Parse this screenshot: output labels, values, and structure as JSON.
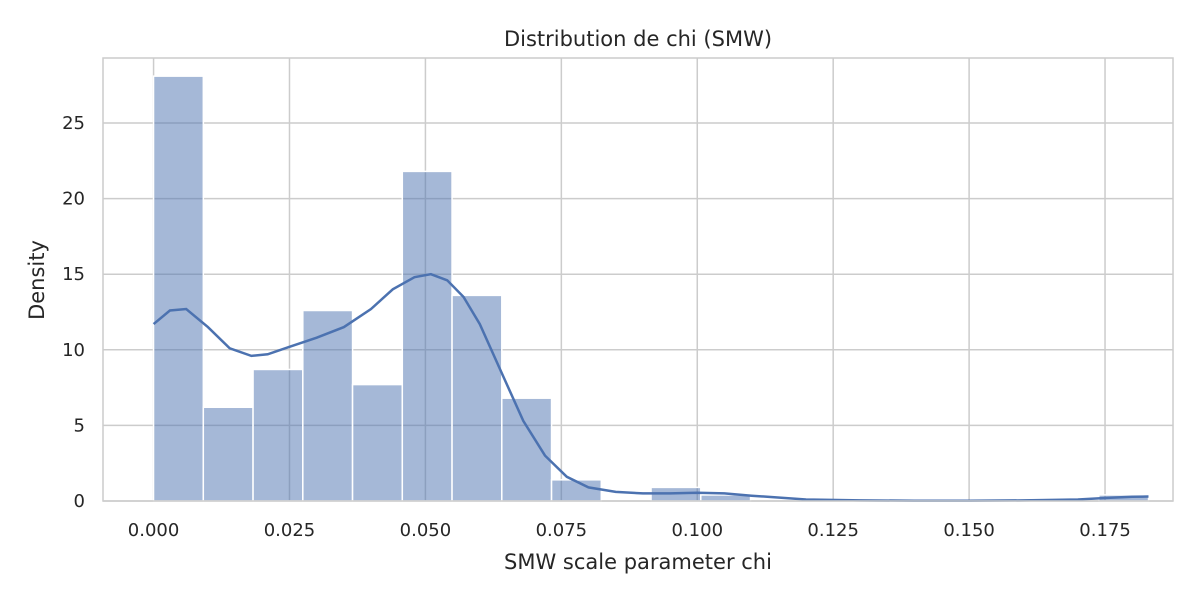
{
  "chart_data": {
    "type": "bar",
    "title": "Distribution de chi (SMW)",
    "xlabel": "SMW scale parameter chi",
    "ylabel": "Density",
    "xlim": [
      -0.0093,
      0.1875
    ],
    "ylim": [
      0,
      29.3
    ],
    "xticks": [
      0.0,
      0.025,
      0.05,
      0.075,
      0.1,
      0.125,
      0.15,
      0.175
    ],
    "xtick_labels": [
      "0.000",
      "0.025",
      "0.050",
      "0.075",
      "0.100",
      "0.125",
      "0.150",
      "0.175"
    ],
    "yticks": [
      0,
      5,
      10,
      15,
      20,
      25
    ],
    "ytick_labels": [
      "0",
      "5",
      "10",
      "15",
      "20",
      "25"
    ],
    "grid": true,
    "bin_edges": [
      0.0,
      0.00915,
      0.0183,
      0.02745,
      0.0366,
      0.04575,
      0.0549,
      0.06405,
      0.0732,
      0.08235,
      0.0915,
      0.10065,
      0.1098,
      0.11895,
      0.1281,
      0.13725,
      0.1464,
      0.15555,
      0.1647,
      0.17385,
      0.183
    ],
    "values": [
      28.1,
      6.2,
      8.7,
      12.6,
      7.7,
      21.8,
      13.6,
      6.8,
      1.4,
      0.0,
      0.9,
      0.4,
      0.0,
      0.0,
      0.0,
      0.0,
      0.0,
      0.0,
      0.0,
      0.4
    ],
    "kde": {
      "x": [
        0.0,
        0.003,
        0.006,
        0.01,
        0.014,
        0.018,
        0.021,
        0.025,
        0.03,
        0.035,
        0.04,
        0.044,
        0.048,
        0.051,
        0.054,
        0.057,
        0.06,
        0.064,
        0.068,
        0.072,
        0.076,
        0.08,
        0.085,
        0.09,
        0.095,
        0.1,
        0.105,
        0.11,
        0.12,
        0.13,
        0.14,
        0.15,
        0.16,
        0.17,
        0.175,
        0.18,
        0.183
      ],
      "y": [
        11.7,
        12.6,
        12.7,
        11.5,
        10.1,
        9.6,
        9.7,
        10.2,
        10.8,
        11.5,
        12.7,
        14.0,
        14.8,
        15.0,
        14.6,
        13.5,
        11.7,
        8.5,
        5.3,
        3.0,
        1.6,
        0.9,
        0.6,
        0.5,
        0.5,
        0.55,
        0.5,
        0.35,
        0.1,
        0.04,
        0.02,
        0.02,
        0.04,
        0.1,
        0.2,
        0.28,
        0.3
      ]
    }
  }
}
